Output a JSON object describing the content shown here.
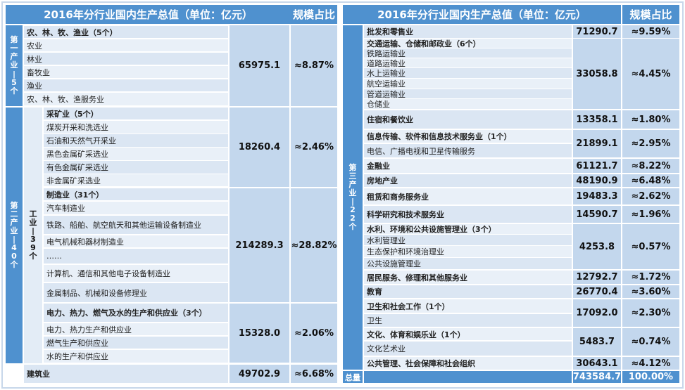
{
  "left": {
    "header_title": "2016年分行业国内生产总值（单位：亿元）",
    "header_pct": "规模占比",
    "primary_label": [
      "第",
      "一",
      "产",
      "业",
      "|",
      "5",
      "个"
    ],
    "secondary_label": [
      "第",
      "二",
      "产",
      "业",
      "|",
      "4",
      "0",
      "个"
    ],
    "industry_label": [
      "工",
      "业",
      "|",
      "3",
      "9",
      "个"
    ],
    "agri": {
      "title": "农、林、牧、渔业（5个）",
      "items": [
        "农业",
        "林业",
        "畜牧业",
        "渔业",
        "农、林、牧、渔服务业"
      ],
      "value": "65975.1",
      "pct": "≈8.87%"
    },
    "mining": {
      "title": "采矿业（5个）",
      "items": [
        "煤炭开采和洗选业",
        "石油和天然气开采业",
        "黑色金属矿采选业",
        "有色金属矿采选业",
        "非金属矿采选业"
      ],
      "value": "18260.4",
      "pct": "≈2.46%"
    },
    "manufacturing": {
      "title": "制造业（31个）",
      "items": [
        "汽车制造业",
        "铁路、船舶、航空航天和其他运输设备制造业",
        "电气机械和器材制造业",
        "……",
        "计算机、通信和其他电子设备制造业",
        "金属制品、机械和设备修理业"
      ],
      "value": "214289.3",
      "pct": "≈28.82%"
    },
    "utilities": {
      "title": "电力、热力、燃气及水的生产和供应业（3个）",
      "items": [
        "电力、热力生产和供应业",
        "燃气生产和供应业",
        "水的生产和供应业"
      ],
      "value": "15328.0",
      "pct": "≈2.06%"
    },
    "construction": {
      "title": "建筑业",
      "value": "49702.9",
      "pct": "≈6.68%"
    }
  },
  "right": {
    "header_title": "2016年分行业国内生产总值（单位：亿元）",
    "header_pct": "规模占比",
    "tertiary_label": [
      "第",
      "三",
      "产",
      "业",
      "|",
      "2",
      "2",
      "个"
    ],
    "wholesale": {
      "title": "批发和零售业",
      "value": "71290.7",
      "pct": "≈9.59%"
    },
    "transport": {
      "title": "交通运输、仓储和邮政业（6个）",
      "items": [
        "铁路运输业",
        "道路运输业",
        "水上运输业",
        "航空运输业",
        "管道运输业",
        "仓储业"
      ],
      "value": "33058.8",
      "pct": "≈4.45%"
    },
    "hotel": {
      "title": "住宿和餐饮业",
      "value": "13358.1",
      "pct": "≈1.80%"
    },
    "it": {
      "title": "信息传输、软件和信息技术服务业（1个）",
      "items": [
        "电信、广播电视和卫星传输服务"
      ],
      "value": "21899.1",
      "pct": "≈2.95%"
    },
    "finance": {
      "title": "金融业",
      "value": "61121.7",
      "pct": "≈8.22%"
    },
    "realestate": {
      "title": "房地产业",
      "value": "48190.9",
      "pct": "≈6.48%"
    },
    "leasing": {
      "title": "租赁和商务服务业",
      "value": "19483.3",
      "pct": "≈2.62%"
    },
    "research": {
      "title": "科学研究和技术服务业",
      "value": "14590.7",
      "pct": "≈1.96%"
    },
    "water": {
      "title": "水利、环境和公共设施管理业（3个）",
      "items": [
        "水利管理业",
        "生态保护和环境治理业",
        "公共设施管理业"
      ],
      "value": "4253.8",
      "pct": "≈0.57%"
    },
    "resident": {
      "title": "居民服务、修理和其他服务业",
      "value": "12792.7",
      "pct": "≈1.72%"
    },
    "education": {
      "title": "教育",
      "value": "26770.4",
      "pct": "≈3.60%"
    },
    "health": {
      "title": "卫生和社会工作（1个）",
      "items": [
        "卫生"
      ],
      "value": "17092.0",
      "pct": "≈2.30%"
    },
    "culture": {
      "title": "文化、体育和娱乐业（1个）",
      "items": [
        "文化艺术业"
      ],
      "value": "5483.7",
      "pct": "≈0.74%"
    },
    "public": {
      "title": "公共管理、社会保障和社会组织",
      "value": "30643.1",
      "pct": "≈4.12%"
    },
    "total": {
      "label": "总量",
      "value": "743584.7",
      "pct": "100.00%"
    }
  }
}
